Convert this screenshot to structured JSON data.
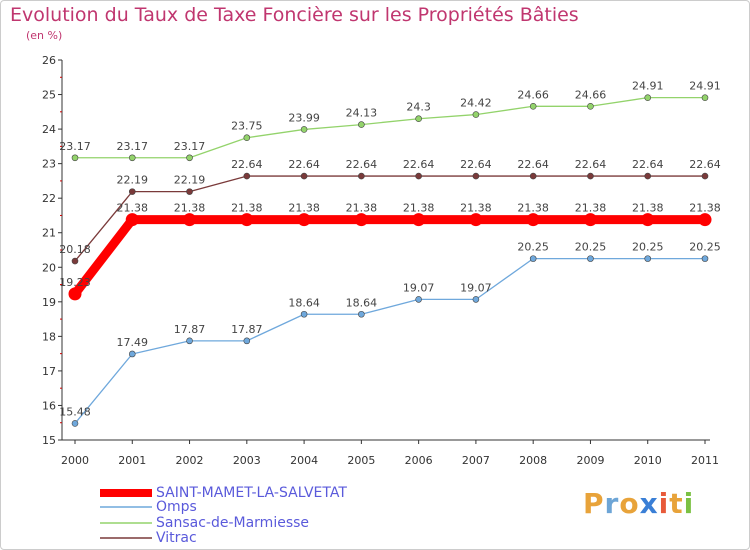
{
  "title": "Evolution du Taux de Taxe Foncière sur les Propriétés Bâties",
  "unit": "(en %)",
  "logo": {
    "text": "Proxiti",
    "colors": [
      "#e8a33a",
      "#6da5d6",
      "#e8a33a",
      "#3a7fd6",
      "#e85a3a",
      "#e8a33a",
      "#7bc143"
    ]
  },
  "chart_data": {
    "type": "line",
    "title": "Evolution du Taux de Taxe Foncière sur les Propriétés Bâties",
    "ylabel": "(en %)",
    "xlabel": "",
    "ylim": [
      15,
      26
    ],
    "yticks": [
      "15",
      "16",
      "17",
      "18",
      "19",
      "20",
      "21",
      "22",
      "23",
      "24",
      "25",
      "26"
    ],
    "x": [
      "2000",
      "2001",
      "2002",
      "2003",
      "2004",
      "2005",
      "2006",
      "2007",
      "2008",
      "2009",
      "2010",
      "2011"
    ],
    "grid": false,
    "series": [
      {
        "name": "SAINT-MAMET-LA-SALVETAT",
        "color": "#ff0000",
        "values": [
          19.23,
          21.38,
          21.38,
          21.38,
          21.38,
          21.38,
          21.38,
          21.38,
          21.38,
          21.38,
          21.38,
          21.38
        ],
        "labels": [
          "19.23",
          "21.38",
          "21.38",
          "21.38",
          "21.38",
          "21.38",
          "21.38",
          "21.38",
          "21.38",
          "21.38",
          "21.38",
          "21.38"
        ]
      },
      {
        "name": "Omps",
        "color": "#6fa8dc",
        "values": [
          15.48,
          17.49,
          17.87,
          17.87,
          18.64,
          18.64,
          19.07,
          19.07,
          20.25,
          20.25,
          20.25,
          20.25
        ],
        "labels": [
          "15.48",
          "17.49",
          "17.87",
          "17.87",
          "18.64",
          "18.64",
          "19.07",
          "19.07",
          "20.25",
          "20.25",
          "20.25",
          "20.25"
        ]
      },
      {
        "name": "Sansac-de-Marmiesse",
        "color": "#93d36b",
        "values": [
          23.17,
          23.17,
          23.17,
          23.75,
          23.99,
          24.13,
          24.3,
          24.42,
          24.66,
          24.66,
          24.91,
          24.91
        ],
        "labels": [
          "23.17",
          "23.17",
          "23.17",
          "23.75",
          "23.99",
          "24.13",
          "24.3",
          "24.42",
          "24.66",
          "24.66",
          "24.91",
          "24.91"
        ]
      },
      {
        "name": "Vitrac",
        "color": "#7a3a3a",
        "values": [
          20.18,
          22.19,
          22.19,
          22.64,
          22.64,
          22.64,
          22.64,
          22.64,
          22.64,
          22.64,
          22.64,
          22.64
        ],
        "labels": [
          "20.18",
          "22.19",
          "22.19",
          "22.64",
          "22.64",
          "22.64",
          "22.64",
          "22.64",
          "22.64",
          "22.64",
          "22.64",
          "22.64"
        ]
      }
    ],
    "legend": "bottom-left"
  }
}
